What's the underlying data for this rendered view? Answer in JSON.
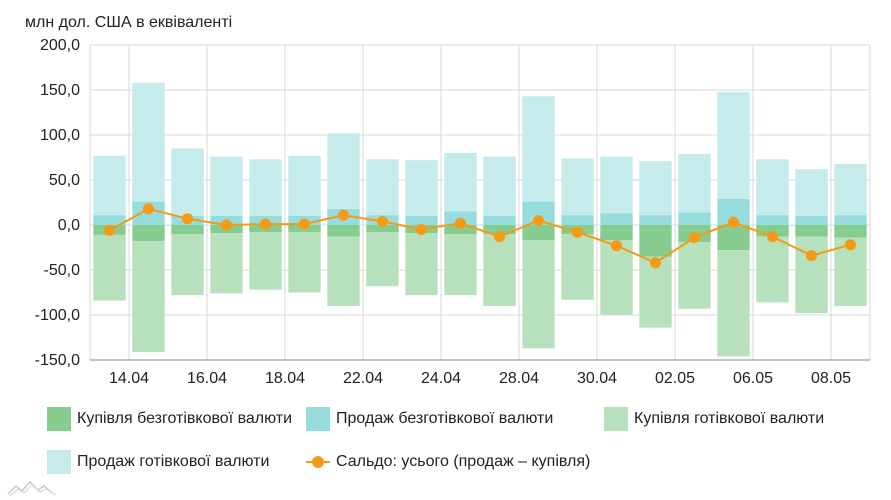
{
  "chart_data": {
    "type": "bar",
    "ylabel": "млн дол. США в еквіваленті",
    "ylim": [
      -150,
      200
    ],
    "yticks": [
      "200,0",
      "150,0",
      "100,0",
      "50,0",
      "0,0",
      "-50,0",
      "-100,0",
      "-150,0"
    ],
    "ytick_values": [
      200,
      150,
      100,
      50,
      0,
      -50,
      -100,
      -150
    ],
    "x_tick_labels": [
      "14.04",
      "16.04",
      "18.04",
      "22.04",
      "24.04",
      "28.04",
      "30.04",
      "02.05",
      "06.05",
      "08.05"
    ],
    "x_tick_positions": [
      1,
      3,
      5,
      7,
      9,
      11,
      13,
      15,
      17,
      19
    ],
    "n_bars": 20,
    "grid": true,
    "legend_position": "bottom",
    "series": [
      {
        "name": "Купівля безготівкової валюти",
        "color": "#86cc8f",
        "values": [
          -11,
          -18,
          -10,
          -9,
          -8,
          -8,
          -13,
          -8,
          -9,
          -10,
          -10,
          -17,
          -10,
          -17,
          -35,
          -19,
          -28,
          -13,
          -13,
          -14
        ]
      },
      {
        "name": "Продаж безготівкової валюти",
        "color": "#96dcdc",
        "values": [
          11,
          26,
          10,
          10,
          10,
          10,
          18,
          11,
          10,
          15,
          10,
          26,
          11,
          13,
          11,
          14,
          29,
          11,
          10,
          11
        ]
      },
      {
        "name": "Купівля готівкової валюти",
        "color": "#b7e0bc",
        "values": [
          -73,
          -123,
          -68,
          -67,
          -64,
          -67,
          -77,
          -60,
          -69,
          -68,
          -80,
          -120,
          -73,
          -83,
          -79,
          -74,
          -118,
          -73,
          -85,
          -76
        ]
      },
      {
        "name": "Продаж готівкової валюти",
        "color": "#c5ebeb",
        "values": [
          66,
          132,
          75,
          66,
          63,
          67,
          84,
          62,
          62,
          65,
          66,
          117,
          63,
          63,
          60,
          65,
          119,
          62,
          52,
          57
        ]
      },
      {
        "name": "Сальдо: усього (продаж – купівля)",
        "color": "#f59a14",
        "type": "line",
        "values": [
          -6,
          18,
          7,
          0,
          1,
          1,
          11,
          4,
          -5,
          2,
          -13,
          5,
          -8,
          -23,
          -42,
          -14,
          3,
          -13,
          -34,
          -22
        ]
      }
    ]
  },
  "legend": {
    "item1": "Купівля безготівкової валюти",
    "item2": "Продаж безготівкової валюти",
    "item3": "Купівля готівкової валюти",
    "item4": "Продаж готівкової валюти",
    "item5": "Сальдо: усього (продаж – купівля)"
  },
  "colors": {
    "grid": "#d9d9d9",
    "axis": "#888888",
    "text": "#222222",
    "logo": "#bbbbbb"
  }
}
